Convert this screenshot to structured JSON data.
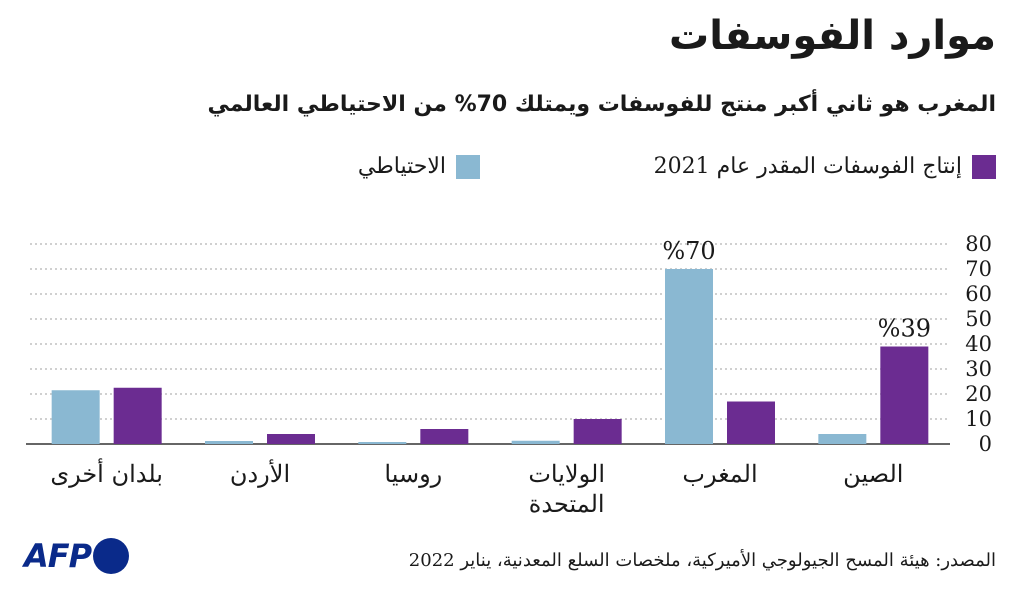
{
  "header": {
    "title": "موارد الفوسفات",
    "subtitle": "المغرب هو ثاني أكبر منتج للفوسفات ويمتلك 70% من الاحتياطي العالمي"
  },
  "legend": {
    "production_label": "إنتاج الفوسفات المقدر عام 2021",
    "reserves_label": "الاحتياطي"
  },
  "colors": {
    "production": "#6b2c91",
    "reserves": "#8ab8d2",
    "grid": "#a0a0a0",
    "axis": "#333333",
    "text": "#1a1a1a"
  },
  "chart_data": {
    "type": "bar",
    "categories": [
      [
        "الصين"
      ],
      [
        "المغرب"
      ],
      [
        "الولايات",
        "المتحدة"
      ],
      [
        "روسيا"
      ],
      [
        "الأردن"
      ],
      [
        "بلدان أخرى"
      ]
    ],
    "series": [
      {
        "name": "إنتاج الفوسفات المقدر عام 2021",
        "key": "production",
        "values": [
          39,
          17,
          10,
          6,
          4,
          22.5
        ]
      },
      {
        "name": "الاحتياطي",
        "key": "reserves",
        "values": [
          4,
          70,
          1.3,
          0.8,
          1.2,
          21.5
        ]
      }
    ],
    "annotations": [
      {
        "category_index": 0,
        "series": "production",
        "text": "%39"
      },
      {
        "category_index": 1,
        "series": "reserves",
        "text": "%70"
      }
    ],
    "ylim": [
      0,
      80
    ],
    "yticks": [
      0,
      10,
      20,
      30,
      40,
      50,
      60,
      70,
      80
    ],
    "grid": true,
    "direction": "rtl"
  },
  "footer": {
    "source": "المصدر: هيئة المسح الجيولوجي الأميركية، ملخصات السلع المعدنية، يناير 2022",
    "logo_text": "AFP"
  }
}
